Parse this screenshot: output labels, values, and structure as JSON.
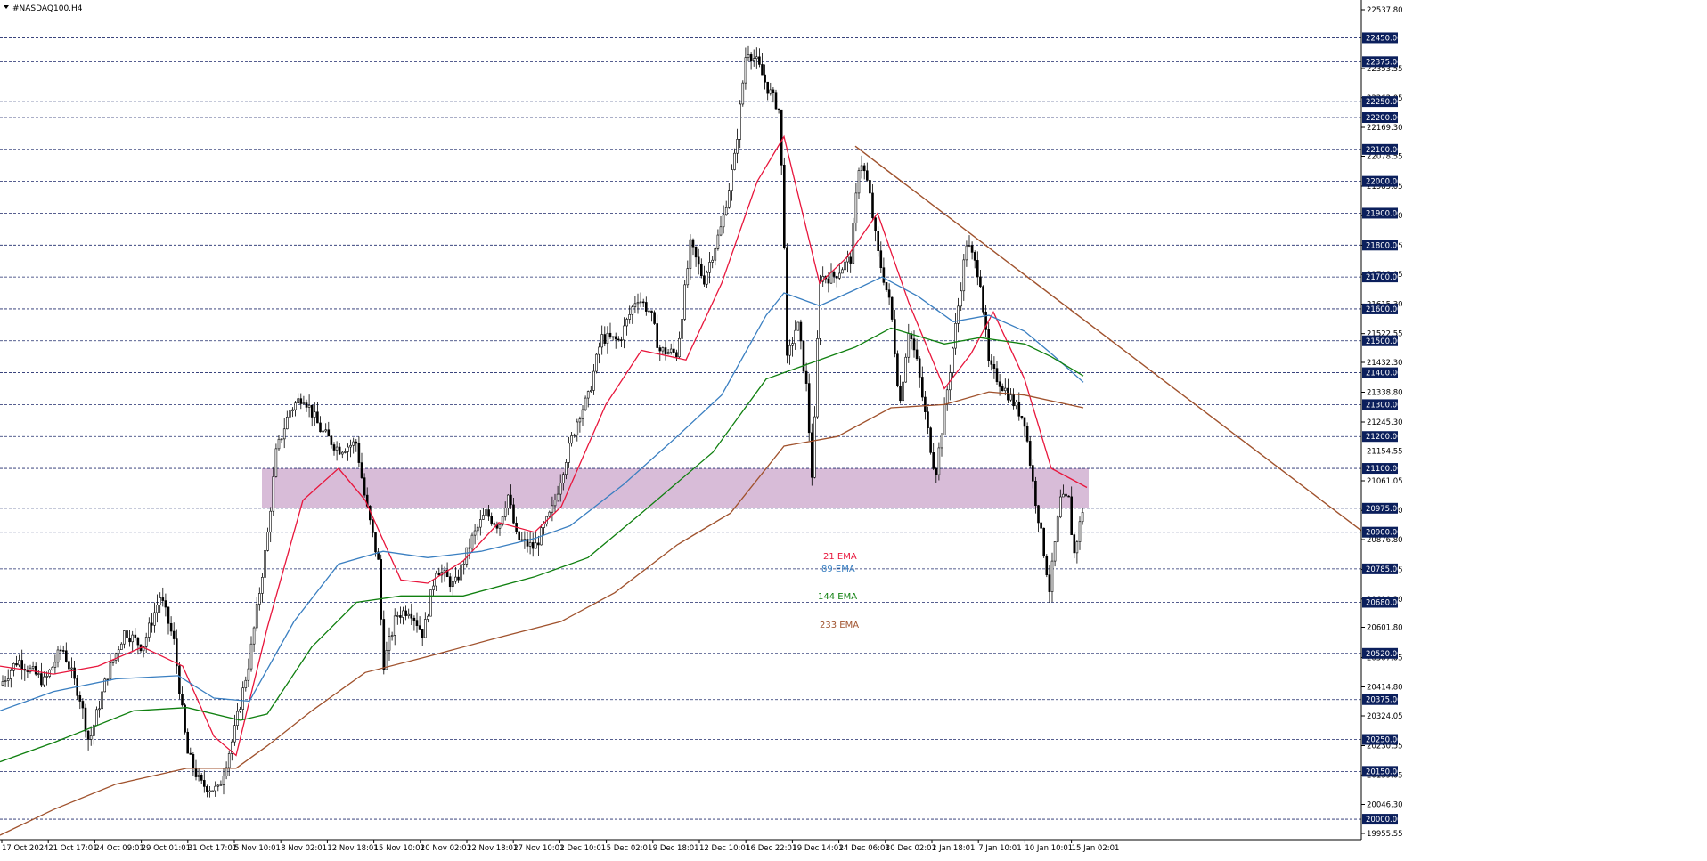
{
  "window": {
    "symbol_title": "#NASDAQ100.H4",
    "menu_icon": "triangle-down-icon"
  },
  "colors": {
    "background": "#ffffff",
    "candle": "#000000",
    "grid_line": "#1f2a6b",
    "ema21": "#e8163c",
    "ema89": "#3a7fc1",
    "ema144": "#108010",
    "ema233": "#a0522d",
    "trendline": "#a0522d",
    "zone_fill": "#d8bcd8",
    "price_tag_bg": "#0b1f5c",
    "price_tag_text": "#ffffff"
  },
  "chart_data": {
    "type": "candlestick",
    "symbol": "#NASDAQ100.H4",
    "ylim": [
      19955.55,
      22537.8
    ],
    "y_axis_ticks": [
      22537.8,
      22353.55,
      22262.05,
      22169.3,
      22078.55,
      21985.05,
      21892.3,
      21799.55,
      21708.05,
      21615.3,
      21522.55,
      21432.3,
      21338.8,
      21245.3,
      21154.55,
      21061.05,
      20968.3,
      20876.8,
      20783.05,
      20690.3,
      20601.8,
      20507.05,
      20414.8,
      20324.05,
      20230.55,
      20139.05,
      20046.3,
      19955.55
    ],
    "level_labels": [
      22450.0,
      22375.0,
      22250.0,
      22200.0,
      22100.0,
      22000.0,
      21900.0,
      21800.0,
      21700.0,
      21600.0,
      21500.0,
      21400.0,
      21300.0,
      21200.0,
      21100.0,
      20975.0,
      20900.0,
      20785.0,
      20680.0,
      20520.0,
      20375.0,
      20250.0,
      20150.0,
      20000.0
    ],
    "x_tick_labels": [
      "17 Oct 2024",
      "21 Oct 17:01",
      "24 Oct 09:01",
      "29 Oct 01:01",
      "31 Oct 17:01",
      "5 Nov 10:01",
      "8 Nov 02:01",
      "12 Nov 18:01",
      "15 Nov 10:01",
      "20 Nov 02:01",
      "22 Nov 18:01",
      "27 Nov 10:01",
      "2 Dec 10:01",
      "5 Dec 02:01",
      "9 Dec 18:01",
      "12 Dec 10:01",
      "16 Dec 22:01",
      "19 Dec 14:01",
      "24 Dec 06:01",
      "30 Dec 02:01",
      "2 Jan 18:01",
      "7 Jan 10:01",
      "10 Jan 10:01",
      "15 Jan 02:01"
    ],
    "zone": {
      "low": 20975.0,
      "high": 21100.0
    },
    "trendline": {
      "start": {
        "x": "24 Dec 06:01",
        "y": 22110
      },
      "end_price_at_axis": 20905
    },
    "series": [
      {
        "name": "21 EMA",
        "color": "#e8163c",
        "anchors": [
          [
            0,
            20480
          ],
          [
            60,
            20455
          ],
          [
            110,
            20480
          ],
          [
            160,
            20540
          ],
          [
            205,
            20480
          ],
          [
            240,
            20260
          ],
          [
            265,
            20200
          ],
          [
            300,
            20600
          ],
          [
            340,
            21000
          ],
          [
            380,
            21100
          ],
          [
            410,
            21000
          ],
          [
            450,
            20750
          ],
          [
            480,
            20740
          ],
          [
            520,
            20810
          ],
          [
            560,
            20930
          ],
          [
            600,
            20900
          ],
          [
            630,
            20980
          ],
          [
            680,
            21300
          ],
          [
            720,
            21470
          ],
          [
            770,
            21440
          ],
          [
            810,
            21680
          ],
          [
            850,
            22000
          ],
          [
            880,
            22140
          ],
          [
            920,
            21680
          ],
          [
            950,
            21760
          ],
          [
            985,
            21900
          ],
          [
            1020,
            21620
          ],
          [
            1060,
            21350
          ],
          [
            1090,
            21460
          ],
          [
            1115,
            21590
          ],
          [
            1150,
            21380
          ],
          [
            1180,
            21100
          ],
          [
            1220,
            21040
          ]
        ]
      },
      {
        "name": "89 EMA",
        "color": "#3a7fc1",
        "anchors": [
          [
            0,
            20340
          ],
          [
            60,
            20400
          ],
          [
            130,
            20440
          ],
          [
            200,
            20450
          ],
          [
            240,
            20380
          ],
          [
            280,
            20370
          ],
          [
            330,
            20620
          ],
          [
            380,
            20800
          ],
          [
            430,
            20840
          ],
          [
            480,
            20820
          ],
          [
            540,
            20840
          ],
          [
            600,
            20880
          ],
          [
            640,
            20920
          ],
          [
            700,
            21050
          ],
          [
            760,
            21200
          ],
          [
            810,
            21330
          ],
          [
            860,
            21580
          ],
          [
            880,
            21650
          ],
          [
            920,
            21610
          ],
          [
            960,
            21660
          ],
          [
            990,
            21700
          ],
          [
            1030,
            21640
          ],
          [
            1070,
            21560
          ],
          [
            1110,
            21580
          ],
          [
            1150,
            21530
          ],
          [
            1180,
            21460
          ],
          [
            1216,
            21370
          ]
        ]
      },
      {
        "name": "144 EMA",
        "color": "#108010",
        "anchors": [
          [
            0,
            20180
          ],
          [
            60,
            20240
          ],
          [
            150,
            20340
          ],
          [
            210,
            20350
          ],
          [
            270,
            20310
          ],
          [
            300,
            20330
          ],
          [
            350,
            20540
          ],
          [
            400,
            20680
          ],
          [
            450,
            20700
          ],
          [
            520,
            20700
          ],
          [
            600,
            20760
          ],
          [
            660,
            20820
          ],
          [
            720,
            20960
          ],
          [
            800,
            21150
          ],
          [
            860,
            21380
          ],
          [
            900,
            21420
          ],
          [
            960,
            21480
          ],
          [
            1000,
            21540
          ],
          [
            1060,
            21490
          ],
          [
            1100,
            21510
          ],
          [
            1150,
            21490
          ],
          [
            1180,
            21450
          ],
          [
            1216,
            21390
          ]
        ]
      },
      {
        "name": "233 EMA",
        "color": "#a0522d",
        "anchors": [
          [
            0,
            19950
          ],
          [
            60,
            20030
          ],
          [
            130,
            20110
          ],
          [
            210,
            20160
          ],
          [
            265,
            20160
          ],
          [
            300,
            20230
          ],
          [
            350,
            20340
          ],
          [
            410,
            20460
          ],
          [
            480,
            20510
          ],
          [
            560,
            20570
          ],
          [
            630,
            20620
          ],
          [
            690,
            20710
          ],
          [
            760,
            20860
          ],
          [
            820,
            20960
          ],
          [
            880,
            21170
          ],
          [
            940,
            21200
          ],
          [
            1000,
            21290
          ],
          [
            1060,
            21300
          ],
          [
            1110,
            21340
          ],
          [
            1150,
            21330
          ],
          [
            1216,
            21290
          ]
        ]
      }
    ],
    "price_path": [
      [
        0,
        20420
      ],
      [
        20,
        20500
      ],
      [
        50,
        20430
      ],
      [
        70,
        20540
      ],
      [
        90,
        20380
      ],
      [
        100,
        20240
      ],
      [
        120,
        20450
      ],
      [
        140,
        20590
      ],
      [
        160,
        20540
      ],
      [
        180,
        20700
      ],
      [
        195,
        20560
      ],
      [
        210,
        20210
      ],
      [
        225,
        20110
      ],
      [
        245,
        20090
      ],
      [
        262,
        20260
      ],
      [
        280,
        20500
      ],
      [
        300,
        20880
      ],
      [
        310,
        21150
      ],
      [
        325,
        21280
      ],
      [
        340,
        21330
      ],
      [
        360,
        21220
      ],
      [
        380,
        21160
      ],
      [
        400,
        21180
      ],
      [
        410,
        21000
      ],
      [
        425,
        20800
      ],
      [
        430,
        20480
      ],
      [
        445,
        20640
      ],
      [
        460,
        20660
      ],
      [
        475,
        20580
      ],
      [
        490,
        20790
      ],
      [
        510,
        20730
      ],
      [
        530,
        20880
      ],
      [
        545,
        20960
      ],
      [
        560,
        20920
      ],
      [
        570,
        21020
      ],
      [
        580,
        20880
      ],
      [
        600,
        20850
      ],
      [
        620,
        20970
      ],
      [
        635,
        21130
      ],
      [
        650,
        21270
      ],
      [
        660,
        21320
      ],
      [
        675,
        21510
      ],
      [
        695,
        21500
      ],
      [
        715,
        21640
      ],
      [
        730,
        21590
      ],
      [
        740,
        21470
      ],
      [
        760,
        21460
      ],
      [
        775,
        21800
      ],
      [
        790,
        21690
      ],
      [
        810,
        21860
      ],
      [
        825,
        22080
      ],
      [
        838,
        22420
      ],
      [
        850,
        22370
      ],
      [
        862,
        22290
      ],
      [
        874,
        22230
      ],
      [
        880,
        21880
      ],
      [
        882,
        21420
      ],
      [
        895,
        21560
      ],
      [
        905,
        21360
      ],
      [
        912,
        21050
      ],
      [
        920,
        21700
      ],
      [
        935,
        21700
      ],
      [
        955,
        21760
      ],
      [
        965,
        22080
      ],
      [
        975,
        21980
      ],
      [
        985,
        21780
      ],
      [
        1000,
        21600
      ],
      [
        1010,
        21300
      ],
      [
        1020,
        21540
      ],
      [
        1030,
        21420
      ],
      [
        1040,
        21240
      ],
      [
        1050,
        21080
      ],
      [
        1060,
        21280
      ],
      [
        1070,
        21490
      ],
      [
        1085,
        21810
      ],
      [
        1100,
        21700
      ],
      [
        1110,
        21420
      ],
      [
        1130,
        21340
      ],
      [
        1150,
        21250
      ],
      [
        1160,
        21040
      ],
      [
        1170,
        20870
      ],
      [
        1178,
        20720
      ],
      [
        1190,
        21000
      ],
      [
        1200,
        21000
      ],
      [
        1205,
        20820
      ],
      [
        1215,
        20970
      ]
    ]
  },
  "annotations": [
    {
      "id": "ema21",
      "text": "21 EMA",
      "color": "#e8163c"
    },
    {
      "id": "ema89",
      "text": "89 EMA",
      "color": "#3a7fc1"
    },
    {
      "id": "ema144",
      "text": "144 EMA",
      "color": "#108010"
    },
    {
      "id": "ema233",
      "text": "233 EMA",
      "color": "#a0522d"
    }
  ]
}
